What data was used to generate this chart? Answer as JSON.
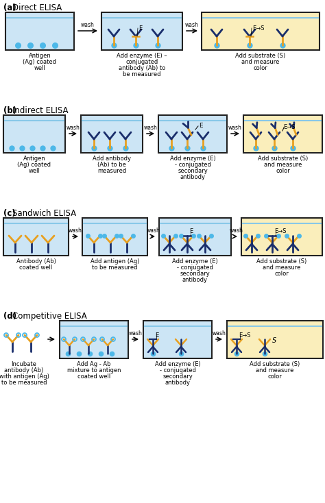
{
  "bg_color": "#ffffff",
  "well_fill": "#cce5f5",
  "well_yellow": "#faeebb",
  "well_border": "#222222",
  "water_line": "#88c8e8",
  "ab_dark": "#1a2e6b",
  "ab_gold": "#e8a020",
  "antigen_blue": "#4db8e8",
  "text_color": "#111111",
  "sections": [
    "(a) Direct ELISA",
    "(b) Indirect ELISA",
    "(c) Sandwich ELISA",
    "(d) Competitive ELISA"
  ],
  "label_fontsize": 6.0,
  "title_fontsize": 8.5
}
